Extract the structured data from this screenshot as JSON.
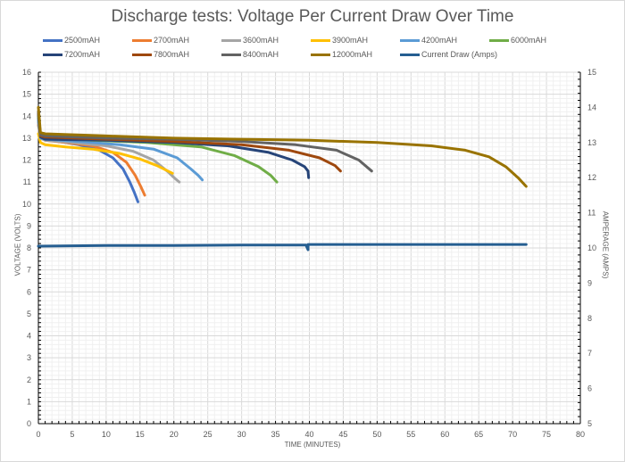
{
  "chart_data": {
    "type": "line",
    "title": "Discharge tests: Voltage Per Current Draw Over Time",
    "xlabel": "TIME (MINUTES)",
    "ylabel": "VOLTAGE (VOLTS)",
    "y2label": "AMPERAGE (AMPS)",
    "xlim": [
      0,
      80
    ],
    "ylim": [
      0,
      16
    ],
    "y2lim": [
      5,
      15
    ],
    "x_ticks": [
      0,
      5,
      10,
      15,
      20,
      25,
      30,
      35,
      40,
      45,
      50,
      55,
      60,
      65,
      70,
      75,
      80
    ],
    "y_ticks": [
      0,
      1,
      2,
      3,
      4,
      5,
      6,
      7,
      8,
      9,
      10,
      11,
      12,
      13,
      14,
      15,
      16
    ],
    "y2_ticks": [
      5,
      6,
      7,
      8,
      9,
      10,
      11,
      12,
      13,
      14,
      15
    ],
    "grid": true,
    "legend_position": "top",
    "series": [
      {
        "name": "2500mAH",
        "color": "#4472c4",
        "axis": "left",
        "x": [
          0,
          0.3,
          1,
          3,
          6,
          9,
          11,
          12.5,
          13.5,
          14.2,
          14.7
        ],
        "values": [
          13.9,
          13.1,
          12.95,
          12.85,
          12.7,
          12.45,
          12.1,
          11.6,
          11.0,
          10.5,
          10.1
        ]
      },
      {
        "name": "2700mAH",
        "color": "#ed7d31",
        "axis": "left",
        "x": [
          0,
          0.3,
          1,
          4,
          8,
          11,
          13,
          14.3,
          15.1,
          15.7
        ],
        "values": [
          13.6,
          13.0,
          12.9,
          12.8,
          12.65,
          12.35,
          11.9,
          11.3,
          10.8,
          10.4
        ]
      },
      {
        "name": "3600mAH",
        "color": "#a5a5a5",
        "axis": "left",
        "x": [
          0,
          0.3,
          1,
          5,
          10,
          14,
          17,
          19,
          20.2,
          20.8
        ],
        "values": [
          13.7,
          13.0,
          12.9,
          12.8,
          12.65,
          12.4,
          12.0,
          11.5,
          11.15,
          11.0
        ]
      },
      {
        "name": "3900mAH",
        "color": "#ffc000",
        "axis": "left",
        "x": [
          0,
          0.3,
          1,
          4,
          8,
          12,
          15,
          17.5,
          19.8
        ],
        "values": [
          13.2,
          12.8,
          12.7,
          12.6,
          12.5,
          12.3,
          12.05,
          11.75,
          11.4
        ]
      },
      {
        "name": "4200mAH",
        "color": "#5b9bd5",
        "axis": "left",
        "x": [
          0,
          0.3,
          1,
          6,
          12,
          17,
          20.5,
          22.5,
          23.6,
          24.2
        ],
        "values": [
          13.8,
          13.0,
          12.95,
          12.85,
          12.7,
          12.5,
          12.1,
          11.6,
          11.3,
          11.1
        ]
      },
      {
        "name": "6000mAH",
        "color": "#70ad47",
        "axis": "left",
        "x": [
          0,
          0.3,
          1,
          8,
          16,
          24,
          29,
          32.5,
          34.3,
          35.2
        ],
        "values": [
          14.0,
          13.1,
          13.0,
          12.9,
          12.8,
          12.6,
          12.2,
          11.7,
          11.3,
          11.0
        ]
      },
      {
        "name": "7200mAH",
        "color": "#264478",
        "axis": "left",
        "x": [
          0,
          0.3,
          1,
          10,
          20,
          28,
          34,
          37.5,
          39.3,
          39.8,
          39.9
        ],
        "values": [
          14.1,
          13.05,
          12.95,
          12.9,
          12.8,
          12.65,
          12.35,
          12.0,
          11.7,
          11.5,
          11.2
        ]
      },
      {
        "name": "7800mAH",
        "color": "#9e480e",
        "axis": "left",
        "x": [
          0,
          0.3,
          1,
          10,
          20,
          30,
          37,
          41.5,
          43.8,
          44.6
        ],
        "values": [
          14.2,
          13.1,
          13.05,
          12.95,
          12.85,
          12.7,
          12.45,
          12.1,
          11.75,
          11.5
        ]
      },
      {
        "name": "8400mAH",
        "color": "#636363",
        "axis": "left",
        "x": [
          0,
          0.3,
          1,
          10,
          20,
          30,
          38,
          44,
          47.3,
          49.2
        ],
        "values": [
          14.2,
          13.15,
          13.1,
          13.0,
          12.95,
          12.85,
          12.7,
          12.45,
          12.0,
          11.5
        ]
      },
      {
        "name": "12000mAH",
        "color": "#997300",
        "axis": "left",
        "x": [
          0,
          0.3,
          1,
          10,
          20,
          30,
          40,
          50,
          58,
          63,
          66.5,
          69,
          70.8,
          72
        ],
        "values": [
          14.4,
          13.25,
          13.2,
          13.1,
          13.0,
          12.95,
          12.9,
          12.8,
          12.65,
          12.45,
          12.15,
          11.7,
          11.2,
          10.8
        ]
      },
      {
        "name": "Current Draw (Amps)",
        "color": "#255e91",
        "axis": "right",
        "x": [
          0,
          10,
          20,
          30,
          39.5,
          39.8,
          39.8,
          40.1,
          50,
          60,
          72
        ],
        "values": [
          10.05,
          10.07,
          10.07,
          10.08,
          10.08,
          9.95,
          10.1,
          10.1,
          10.1,
          10.1,
          10.1
        ]
      }
    ]
  }
}
